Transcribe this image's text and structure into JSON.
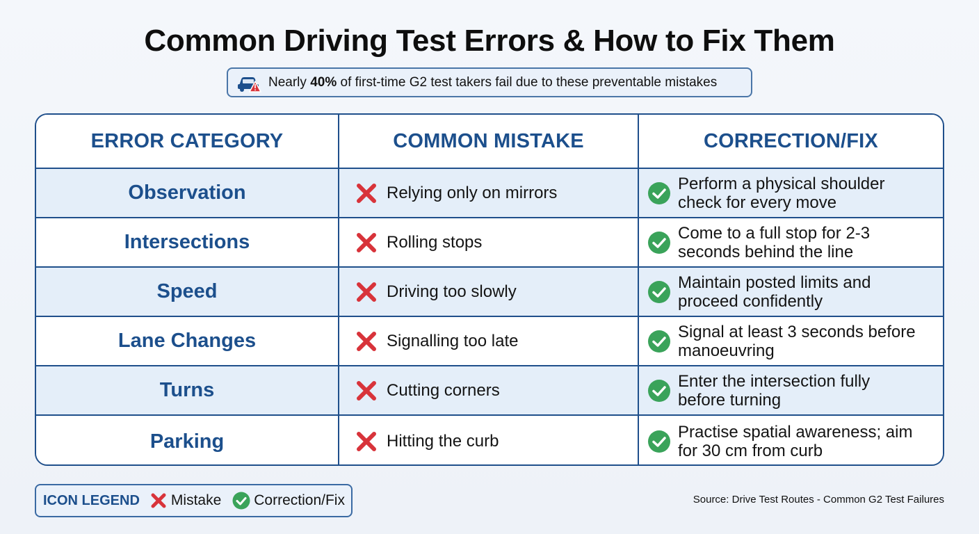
{
  "title": "Common Driving Test Errors & How to Fix Them",
  "banner": {
    "icon": "car-warning-icon",
    "prefix": "Nearly ",
    "highlight": "40%",
    "suffix": " of first-time G2 test takers fail due to these preventable mistakes"
  },
  "table": {
    "headers": [
      "ERROR CATEGORY",
      "COMMON MISTAKE",
      "CORRECTION/FIX"
    ],
    "rows": [
      {
        "category": "Observation",
        "mistake": "Relying only on mirrors",
        "fix_line1": "Perform a physical shoulder",
        "fix_line2": "check for every move"
      },
      {
        "category": "Intersections",
        "mistake": "Rolling stops",
        "fix_line1": "Come to a full stop for 2-3",
        "fix_line2": "seconds behind the line"
      },
      {
        "category": "Speed",
        "mistake": "Driving too slowly",
        "fix_line1": "Maintain posted limits and",
        "fix_line2": "proceed confidently"
      },
      {
        "category": "Lane Changes",
        "mistake": "Signalling too late",
        "fix_line1": "Signal at least 3 seconds before",
        "fix_line2": "manoeuvring"
      },
      {
        "category": "Turns",
        "mistake": "Cutting corners",
        "fix_line1": "Enter the intersection fully",
        "fix_line2": "before turning"
      },
      {
        "category": "Parking",
        "mistake": "Hitting the curb",
        "fix_line1": "Practise spatial awareness; aim",
        "fix_line2": "for 30 cm from curb"
      }
    ]
  },
  "legend": {
    "title": "ICON LEGEND",
    "mistake_label": "Mistake",
    "fix_label": "Correction/Fix"
  },
  "source": "Source: Drive Test Routes - Common G2 Test Failures",
  "colors": {
    "accent": "#1c4f8c",
    "border": "#1f4f8b",
    "alt_row": "#e4eef9",
    "mistake_red": "#d8333a",
    "fix_green": "#3aa35a"
  }
}
